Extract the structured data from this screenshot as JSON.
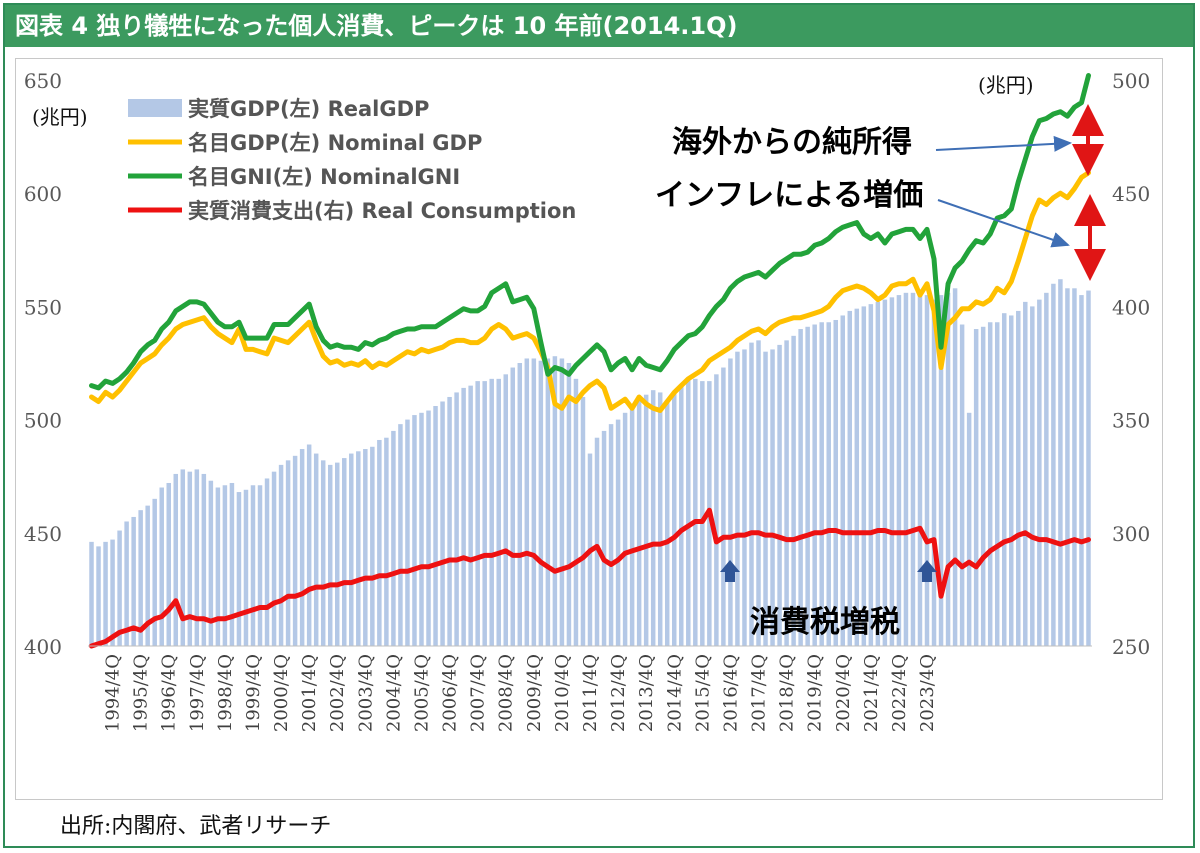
{
  "figure": {
    "title": "図表 4 独り犠牲になった個人消費、ピークは 10 年前(2014.1Q)",
    "source": "出所:内閣府、武者リサーチ"
  },
  "chart_data": {
    "type": "bar",
    "left_axis": {
      "unit": "(兆円)",
      "range": [
        400,
        650
      ],
      "ticks": [
        "650",
        "600",
        "550",
        "500",
        "450",
        "400"
      ]
    },
    "right_axis": {
      "unit": "(兆円)",
      "range": [
        250,
        500
      ],
      "ticks": [
        "500",
        "450",
        "400",
        "350",
        "300",
        "250"
      ]
    },
    "x_tick_labels": [
      "1994/4Q",
      "1995/4Q",
      "1996/4Q",
      "1997/4Q",
      "1998/4Q",
      "1999/4Q",
      "2000/4Q",
      "2001/4Q",
      "2002/4Q",
      "2003/4Q",
      "2004/4Q",
      "2005/4Q",
      "2006/4Q",
      "2007/4Q",
      "2008/4Q",
      "2009/4Q",
      "2010/4Q",
      "2011/4Q",
      "2012/4Q",
      "2013/4Q",
      "2014/4Q",
      "2015/4Q",
      "2016/4Q",
      "2017/4Q",
      "2018/4Q",
      "2019/4Q",
      "2020/4Q",
      "2021/4Q",
      "2022/4Q",
      "2023/4Q"
    ],
    "x_start": "1994/1Q",
    "legend": [
      {
        "label": "実質GDP(左) RealGDP",
        "color": "#b4c8e6",
        "kind": "bar"
      },
      {
        "label": "名目GDP(左) Nominal GDP",
        "color": "#ffc000",
        "kind": "line"
      },
      {
        "label": "名目GNI(左) NominalGNI",
        "color": "#22a33a",
        "kind": "line"
      },
      {
        "label": "実質消費支出(右) Real Consumption",
        "color": "#ee1111",
        "kind": "line"
      }
    ],
    "series": [
      {
        "name": "実質GDP(左) RealGDP",
        "axis": "left",
        "values": [
          446,
          444,
          446,
          447,
          451,
          455,
          457,
          460,
          462,
          465,
          470,
          472,
          476,
          478,
          477,
          478,
          476,
          473,
          470,
          471,
          472,
          468,
          469,
          471,
          471,
          474,
          477,
          480,
          482,
          484,
          487,
          489,
          485,
          482,
          480,
          481,
          483,
          485,
          486,
          487,
          488,
          491,
          492,
          495,
          498,
          500,
          502,
          503,
          504,
          506,
          508,
          510,
          512,
          514,
          515,
          517,
          517,
          518,
          518,
          520,
          523,
          525,
          527,
          527,
          526,
          527,
          528,
          527,
          525,
          518,
          510,
          485,
          492,
          495,
          498,
          500,
          503,
          507,
          510,
          511,
          513,
          512,
          508,
          512,
          515,
          518,
          518,
          517,
          517,
          520,
          523,
          527,
          530,
          531,
          534,
          535,
          530,
          531,
          533,
          535,
          537,
          540,
          541,
          542,
          543,
          543,
          544,
          546,
          548,
          549,
          550,
          551,
          552,
          553,
          554,
          555,
          556,
          556,
          555,
          555,
          553,
          555,
          556,
          558,
          542,
          503,
          540,
          541,
          543,
          543,
          547,
          546,
          548,
          552,
          550,
          553,
          556,
          560,
          562,
          558,
          558,
          555,
          557
        ]
      },
      {
        "name": "名目GDP(左) Nominal GDP",
        "axis": "left",
        "values": [
          510,
          508,
          512,
          510,
          513,
          517,
          521,
          525,
          527,
          529,
          533,
          536,
          540,
          542,
          543,
          544,
          545,
          541,
          538,
          536,
          534,
          540,
          531,
          531,
          530,
          529,
          536,
          535,
          534,
          537,
          540,
          543,
          535,
          528,
          525,
          526,
          524,
          525,
          524,
          526,
          523,
          525,
          524,
          526,
          528,
          530,
          529,
          531,
          530,
          531,
          532,
          534,
          535,
          535,
          534,
          534,
          536,
          540,
          542,
          540,
          536,
          537,
          538,
          536,
          530,
          523,
          507,
          505,
          510,
          508,
          512,
          515,
          517,
          514,
          505,
          507,
          509,
          505,
          510,
          507,
          505,
          504,
          508,
          512,
          515,
          518,
          520,
          522,
          526,
          528,
          530,
          532,
          535,
          537,
          539,
          540,
          538,
          541,
          543,
          544,
          545,
          545,
          546,
          547,
          548,
          550,
          554,
          557,
          558,
          559,
          558,
          556,
          553,
          555,
          559,
          560,
          560,
          562,
          555,
          560,
          548,
          523,
          542,
          545,
          549,
          549,
          552,
          551,
          553,
          558,
          556,
          561,
          570,
          580,
          590,
          597,
          595,
          598,
          600,
          598,
          602,
          607,
          609
        ]
      },
      {
        "name": "名目GNI(左) NominalGNI",
        "axis": "left",
        "values": [
          515,
          514,
          517,
          516,
          518,
          521,
          525,
          530,
          533,
          535,
          540,
          543,
          548,
          550,
          552,
          552,
          551,
          547,
          543,
          541,
          541,
          543,
          536,
          536,
          536,
          536,
          542,
          542,
          542,
          545,
          548,
          551,
          541,
          535,
          532,
          533,
          532,
          532,
          531,
          534,
          533,
          535,
          536,
          538,
          539,
          540,
          540,
          541,
          541,
          541,
          543,
          545,
          547,
          549,
          548,
          548,
          550,
          556,
          558,
          560,
          552,
          553,
          554,
          549,
          534,
          520,
          523,
          522,
          520,
          524,
          527,
          530,
          533,
          530,
          522,
          525,
          527,
          522,
          527,
          524,
          523,
          522,
          526,
          531,
          534,
          537,
          538,
          541,
          546,
          550,
          553,
          558,
          561,
          563,
          564,
          565,
          563,
          566,
          569,
          571,
          573,
          573,
          574,
          577,
          578,
          580,
          583,
          585,
          586,
          587,
          582,
          580,
          582,
          578,
          582,
          583,
          584,
          584,
          580,
          584,
          571,
          532,
          560,
          567,
          570,
          575,
          579,
          578,
          582,
          589,
          590,
          593,
          605,
          615,
          625,
          632,
          633,
          635,
          636,
          634,
          638,
          640,
          652
        ]
      },
      {
        "name": "実質消費支出(右) Real Consumption",
        "axis": "right",
        "values": [
          250,
          251,
          252,
          254,
          256,
          257,
          258,
          257,
          260,
          262,
          263,
          266,
          270,
          262,
          263,
          262,
          262,
          261,
          262,
          262,
          263,
          264,
          265,
          266,
          267,
          267,
          269,
          270,
          272,
          272,
          273,
          275,
          276,
          276,
          277,
          277,
          278,
          278,
          279,
          280,
          280,
          281,
          281,
          282,
          283,
          283,
          284,
          285,
          285,
          286,
          287,
          288,
          288,
          289,
          288,
          289,
          290,
          290,
          291,
          292,
          290,
          290,
          291,
          290,
          287,
          285,
          283,
          284,
          285,
          287,
          289,
          292,
          294,
          288,
          286,
          288,
          291,
          292,
          293,
          294,
          295,
          295,
          296,
          298,
          301,
          303,
          305,
          305,
          310,
          296,
          298,
          298,
          299,
          299,
          300,
          300,
          299,
          299,
          298,
          297,
          297,
          298,
          299,
          300,
          300,
          301,
          301,
          300,
          300,
          300,
          300,
          300,
          301,
          301,
          300,
          300,
          300,
          301,
          302,
          296,
          297,
          272,
          285,
          288,
          285,
          287,
          285,
          289,
          292,
          294,
          296,
          297,
          299,
          300,
          298,
          297,
          297,
          296,
          295,
          296,
          297,
          296,
          297
        ]
      }
    ],
    "annotations": {
      "gap1": "海外からの純所得",
      "gap2": "インフレによる増価",
      "tax": "消費税増税"
    }
  }
}
